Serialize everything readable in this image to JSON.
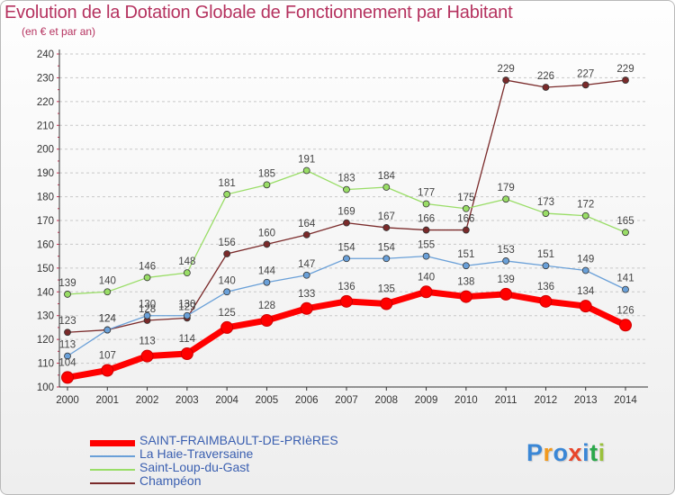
{
  "header": {
    "title": "Evolution de la Dotation Globale de Fonctionnement par Habitant",
    "subtitle": "(en € et par an)"
  },
  "logo": {
    "text": "Proxiti",
    "colors": [
      "#3a87d6",
      "#f29a1e",
      "#3a87d6",
      "#e8452b",
      "#3a87d6",
      "#2aa84a",
      "#9ac13c"
    ]
  },
  "chart_data": {
    "type": "line",
    "x": [
      2000,
      2001,
      2002,
      2003,
      2004,
      2005,
      2006,
      2007,
      2008,
      2009,
      2010,
      2011,
      2012,
      2013,
      2014
    ],
    "ylim": [
      100,
      240
    ],
    "yticks": [
      100,
      110,
      120,
      130,
      140,
      150,
      160,
      170,
      180,
      190,
      200,
      210,
      220,
      230,
      240
    ],
    "grid": "horizontal dashed",
    "legend_placement": "bottom-left",
    "series": [
      {
        "name": "SAINT-FRAIMBAULT-DE-PRIèRES",
        "color": "#ff0000",
        "values": [
          104,
          107,
          113,
          114,
          125,
          128,
          133,
          136,
          135,
          140,
          138,
          139,
          136,
          134,
          126
        ]
      },
      {
        "name": "La Haie-Traversaine",
        "color": "#6aa0d8",
        "values": [
          113,
          124,
          130,
          130,
          140,
          144,
          147,
          154,
          154,
          155,
          151,
          153,
          151,
          149,
          141
        ]
      },
      {
        "name": "Saint-Loup-du-Gast",
        "color": "#99dd66",
        "values": [
          139,
          140,
          146,
          148,
          181,
          185,
          191,
          183,
          184,
          177,
          175,
          179,
          173,
          172,
          165
        ]
      },
      {
        "name": "Champéon",
        "color": "#7a2a2a",
        "values": [
          123,
          124,
          128,
          129,
          156,
          160,
          164,
          169,
          167,
          166,
          166,
          229,
          226,
          227,
          229
        ]
      }
    ]
  }
}
